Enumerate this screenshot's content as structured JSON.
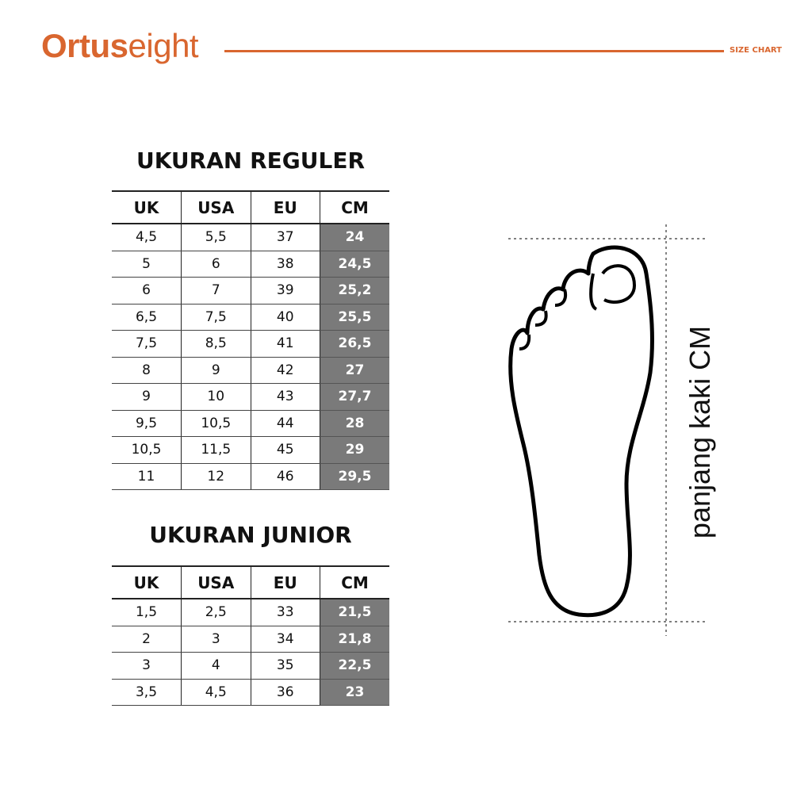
{
  "brand": {
    "name_bold": "Ortus",
    "name_light": "eight",
    "color": "#D9662F"
  },
  "header": {
    "label": "SIZE CHART"
  },
  "regular": {
    "title": "UKURAN REGULER",
    "columns": [
      "UK",
      "USA",
      "EU",
      "CM"
    ],
    "rows": [
      [
        "4,5",
        "5,5",
        "37",
        "24"
      ],
      [
        "5",
        "6",
        "38",
        "24,5"
      ],
      [
        "6",
        "7",
        "39",
        "25,2"
      ],
      [
        "6,5",
        "7,5",
        "40",
        "25,5"
      ],
      [
        "7,5",
        "8,5",
        "41",
        "26,5"
      ],
      [
        "8",
        "9",
        "42",
        "27"
      ],
      [
        "9",
        "10",
        "43",
        "27,7"
      ],
      [
        "9,5",
        "10,5",
        "44",
        "28"
      ],
      [
        "10,5",
        "11,5",
        "45",
        "29"
      ],
      [
        "11",
        "12",
        "46",
        "29,5"
      ]
    ]
  },
  "junior": {
    "title": "UKURAN JUNIOR",
    "columns": [
      "UK",
      "USA",
      "EU",
      "CM"
    ],
    "rows": [
      [
        "1,5",
        "2,5",
        "33",
        "21,5"
      ],
      [
        "2",
        "3",
        "34",
        "21,8"
      ],
      [
        "3",
        "4",
        "35",
        "22,5"
      ],
      [
        "3,5",
        "4,5",
        "36",
        "23"
      ]
    ]
  },
  "diagram": {
    "label": "panjang kaki CM",
    "icon": "foot-outline-icon"
  }
}
